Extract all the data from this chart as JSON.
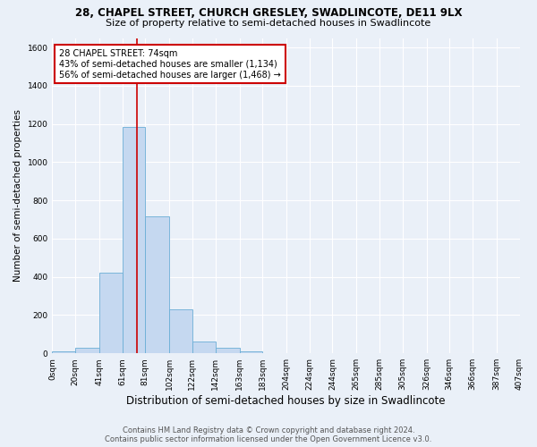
{
  "title": "28, CHAPEL STREET, CHURCH GRESLEY, SWADLINCOTE, DE11 9LX",
  "subtitle": "Size of property relative to semi-detached houses in Swadlincote",
  "xlabel": "Distribution of semi-detached houses by size in Swadlincote",
  "ylabel": "Number of semi-detached properties",
  "footer1": "Contains HM Land Registry data © Crown copyright and database right 2024.",
  "footer2": "Contains public sector information licensed under the Open Government Licence v3.0.",
  "bar_edges": [
    0,
    20,
    41,
    61,
    81,
    102,
    122,
    142,
    163,
    183,
    204,
    224,
    244,
    265,
    285,
    305,
    326,
    346,
    366,
    387,
    407
  ],
  "bar_heights": [
    10,
    28,
    420,
    1185,
    715,
    230,
    62,
    28,
    12,
    0,
    0,
    0,
    0,
    0,
    0,
    0,
    0,
    0,
    0,
    0
  ],
  "bar_color": "#c5d8f0",
  "bar_edge_color": "#6baed6",
  "property_line_x": 74,
  "annotation_text1": "28 CHAPEL STREET: 74sqm",
  "annotation_text2": "43% of semi-detached houses are smaller (1,134)",
  "annotation_text3": "56% of semi-detached houses are larger (1,468) →",
  "annotation_box_color": "#ffffff",
  "annotation_border_color": "#cc0000",
  "red_line_color": "#cc0000",
  "ylim": [
    0,
    1650
  ],
  "yticks": [
    0,
    200,
    400,
    600,
    800,
    1000,
    1200,
    1400,
    1600
  ],
  "xtick_labels": [
    "0sqm",
    "20sqm",
    "41sqm",
    "61sqm",
    "81sqm",
    "102sqm",
    "122sqm",
    "142sqm",
    "163sqm",
    "183sqm",
    "204sqm",
    "224sqm",
    "244sqm",
    "265sqm",
    "285sqm",
    "305sqm",
    "326sqm",
    "346sqm",
    "366sqm",
    "387sqm",
    "407sqm"
  ],
  "bg_color": "#eaf0f8",
  "plot_bg_color": "#eaf0f8",
  "grid_color": "#ffffff",
  "title_fontsize": 8.5,
  "subtitle_fontsize": 8.0,
  "xlabel_fontsize": 8.5,
  "ylabel_fontsize": 7.5,
  "tick_fontsize": 6.5,
  "annotation_fontsize": 7.0,
  "footer_fontsize": 6.0
}
